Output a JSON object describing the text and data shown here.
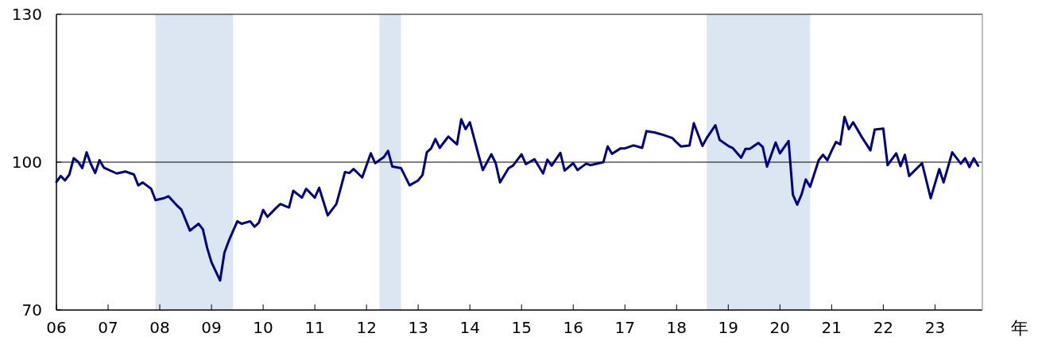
{
  "chart_data": {
    "type": "line",
    "x": [
      "2006-01",
      "2006-02",
      "2006-03",
      "2006-04",
      "2006-05",
      "2006-06",
      "2006-07",
      "2006-08",
      "2006-09",
      "2006-10",
      "2006-11",
      "2006-12",
      "2007-03",
      "2007-05",
      "2007-07",
      "2007-08",
      "2007-09",
      "2007-11",
      "2007-12",
      "2008-02",
      "2008-03",
      "2008-05",
      "2008-06",
      "2008-08",
      "2008-10",
      "2008-11",
      "2008-12",
      "2009-01",
      "2009-03",
      "2009-04",
      "2009-05",
      "2009-07",
      "2009-08",
      "2009-10",
      "2009-11",
      "2009-12",
      "2010-01",
      "2010-02",
      "2010-04",
      "2010-05",
      "2010-07",
      "2010-08",
      "2010-10",
      "2010-11",
      "2011-01",
      "2011-02",
      "2011-04",
      "2011-06",
      "2011-07",
      "2011-08",
      "2011-09",
      "2011-10",
      "2011-12",
      "2012-02",
      "2012-03",
      "2012-05",
      "2012-06",
      "2012-07",
      "2012-09",
      "2012-11",
      "2013-01",
      "2013-02",
      "2013-03",
      "2013-04",
      "2013-05",
      "2013-06",
      "2013-08",
      "2013-10",
      "2013-11",
      "2013-12",
      "2014-01",
      "2014-03",
      "2014-04",
      "2014-06",
      "2014-07",
      "2014-08",
      "2014-10",
      "2014-11",
      "2015-01",
      "2015-02",
      "2015-04",
      "2015-06",
      "2015-07",
      "2015-08",
      "2015-10",
      "2015-11",
      "2016-01",
      "2016-02",
      "2016-04",
      "2016-05",
      "2016-07",
      "2016-08",
      "2016-09",
      "2016-10",
      "2016-12",
      "2017-01",
      "2017-03",
      "2017-05",
      "2017-06",
      "2017-08",
      "2017-10",
      "2017-12",
      "2018-01",
      "2018-02",
      "2018-04",
      "2018-05",
      "2018-07",
      "2018-08",
      "2018-10",
      "2018-11",
      "2019-01",
      "2019-02",
      "2019-04",
      "2019-05",
      "2019-06",
      "2019-08",
      "2019-09",
      "2019-10",
      "2019-12",
      "2020-01",
      "2020-03",
      "2020-04",
      "2020-05",
      "2020-06",
      "2020-07",
      "2020-08",
      "2020-10",
      "2020-11",
      "2020-12",
      "2021-01",
      "2021-02",
      "2021-03",
      "2021-04",
      "2021-05",
      "2021-06",
      "2021-08",
      "2021-10",
      "2021-11",
      "2022-01",
      "2022-02",
      "2022-04",
      "2022-05",
      "2022-06",
      "2022-07",
      "2022-10",
      "2022-12",
      "2023-02",
      "2023-03",
      "2023-05",
      "2023-07",
      "2023-08",
      "2023-09",
      "2023-10",
      "2023-11"
    ],
    "values": [
      96.0,
      97.2,
      96.3,
      97.5,
      100.8,
      100.1,
      98.8,
      102.0,
      99.6,
      97.8,
      100.4,
      98.9,
      97.7,
      98.1,
      97.5,
      95.3,
      95.9,
      94.6,
      92.3,
      92.7,
      93.1,
      91.2,
      90.4,
      86.1,
      87.5,
      86.4,
      82.6,
      79.7,
      76.0,
      81.6,
      84.0,
      88.0,
      87.5,
      88.0,
      86.9,
      87.7,
      90.3,
      88.9,
      90.7,
      91.5,
      90.8,
      94.2,
      92.8,
      94.6,
      92.8,
      94.8,
      89.2,
      91.5,
      94.7,
      98.0,
      97.8,
      98.6,
      96.9,
      101.8,
      99.8,
      101.0,
      102.3,
      99.1,
      98.8,
      95.3,
      96.3,
      97.4,
      102.0,
      102.8,
      104.7,
      102.9,
      105.2,
      103.6,
      108.7,
      106.7,
      108.1,
      101.5,
      98.4,
      101.6,
      99.8,
      95.9,
      98.8,
      99.3,
      101.6,
      99.6,
      100.6,
      97.7,
      100.5,
      99.3,
      101.9,
      98.3,
      99.8,
      98.4,
      99.7,
      99.4,
      99.8,
      100.0,
      103.2,
      101.7,
      102.8,
      102.8,
      103.4,
      102.9,
      106.3,
      106.0,
      105.5,
      104.9,
      104.0,
      103.2,
      103.4,
      107.9,
      103.3,
      104.9,
      107.5,
      104.5,
      103.3,
      102.9,
      100.9,
      102.7,
      102.7,
      103.9,
      103.1,
      99.1,
      104.0,
      101.8,
      104.3,
      93.4,
      91.4,
      93.4,
      96.5,
      95.0,
      100.4,
      101.5,
      100.4,
      102.3,
      104.1,
      103.6,
      109.2,
      106.7,
      108.1,
      105.1,
      102.4,
      106.6,
      106.8,
      99.4,
      101.8,
      99.2,
      101.5,
      97.2,
      99.8,
      92.7,
      98.6,
      95.9,
      102.0,
      99.7,
      100.8,
      99.0,
      100.8,
      99.3
    ],
    "color": "#000080",
    "xlim": [
      "2006-01",
      "2023-12"
    ],
    "xticks": [
      {
        "value": "2006-01",
        "label": "06"
      },
      {
        "value": "2007-01",
        "label": "07"
      },
      {
        "value": "2008-01",
        "label": "08"
      },
      {
        "value": "2009-01",
        "label": "09"
      },
      {
        "value": "2010-01",
        "label": "10"
      },
      {
        "value": "2011-01",
        "label": "11"
      },
      {
        "value": "2012-01",
        "label": "12"
      },
      {
        "value": "2013-01",
        "label": "13"
      },
      {
        "value": "2014-01",
        "label": "14"
      },
      {
        "value": "2015-01",
        "label": "15"
      },
      {
        "value": "2016-01",
        "label": "16"
      },
      {
        "value": "2017-01",
        "label": "17"
      },
      {
        "value": "2018-01",
        "label": "18"
      },
      {
        "value": "2019-01",
        "label": "19"
      },
      {
        "value": "2020-01",
        "label": "20"
      },
      {
        "value": "2021-01",
        "label": "21"
      },
      {
        "value": "2022-01",
        "label": "22"
      },
      {
        "value": "2023-01",
        "label": "23"
      }
    ],
    "ylim": [
      70,
      130
    ],
    "yticks": [
      70,
      100,
      130
    ],
    "xlabel": "年",
    "ref_lines": [
      {
        "axis": "y",
        "value": 100,
        "color": "#000000"
      }
    ],
    "bands": [
      {
        "axis": "x",
        "from": "2007-12",
        "to": "2009-06",
        "color": "#dce6f2"
      },
      {
        "axis": "x",
        "from": "2012-04",
        "to": "2012-09",
        "color": "#dce6f2"
      },
      {
        "axis": "x",
        "from": "2018-08",
        "to": "2020-08",
        "color": "#dce6f2"
      }
    ]
  }
}
